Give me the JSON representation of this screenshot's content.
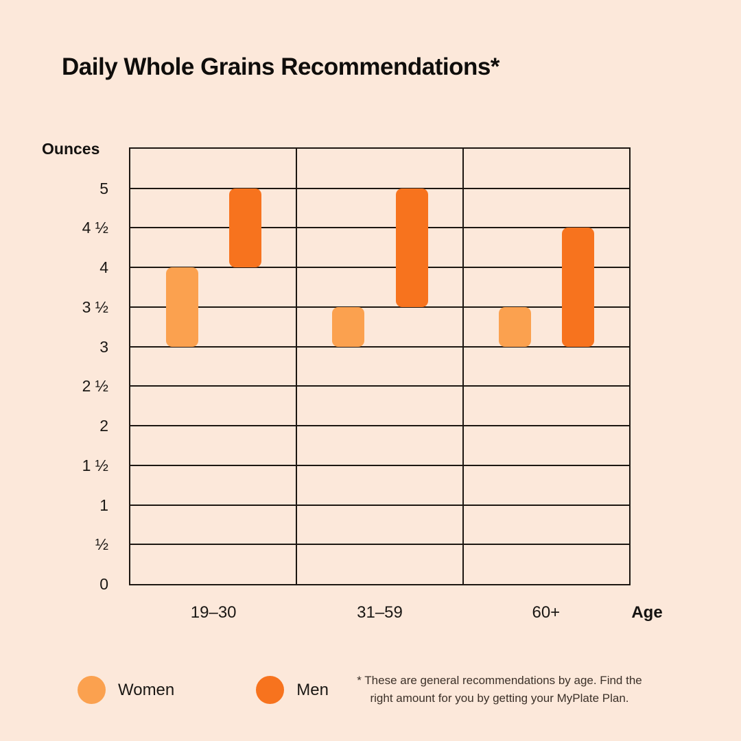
{
  "title": "Daily Whole Grains Recommendations*",
  "y_axis_title": "Ounces",
  "x_axis_title": "Age",
  "legend": [
    {
      "label": "Women",
      "color": "#FBA14F"
    },
    {
      "label": "Men",
      "color": "#F7731E"
    }
  ],
  "footnote": {
    "line1": "* These are general recommendations by age. Find the",
    "line2": "right amount for you by getting your MyPlate Plan."
  },
  "colors": {
    "background": "#FCE8DA",
    "grid_and_frame": "#1c1611",
    "women_bar": "#FBA14F",
    "men_bar": "#F7731E",
    "text": "#1a1714"
  },
  "chart_data": {
    "type": "bar",
    "subtype": "floating-range-columns",
    "title": "Daily Whole Grains Recommendations*",
    "xlabel": "Age",
    "ylabel": "Ounces",
    "categories": [
      "19–30",
      "31–59",
      "60+"
    ],
    "series": [
      {
        "name": "Women",
        "color": "#FBA14F",
        "ranges": [
          [
            3,
            4
          ],
          [
            3,
            3.5
          ],
          [
            3,
            3.5
          ]
        ]
      },
      {
        "name": "Men",
        "color": "#F7731E",
        "ranges": [
          [
            4,
            5
          ],
          [
            3.5,
            5
          ],
          [
            3,
            4.5
          ]
        ]
      }
    ],
    "ylim": [
      0,
      5.5
    ],
    "ytick_step": 0.5,
    "ytick_labels_top_to_bottom": [
      "5",
      "4 ½",
      "4",
      "3 ½",
      "3",
      "2 ½",
      "2",
      "1 ½",
      "1",
      "½",
      "0"
    ],
    "grid": true,
    "legend_position": "bottom-left",
    "footnote": "* These are general recommendations by age. Find the right amount for you by getting your MyPlate Plan."
  }
}
